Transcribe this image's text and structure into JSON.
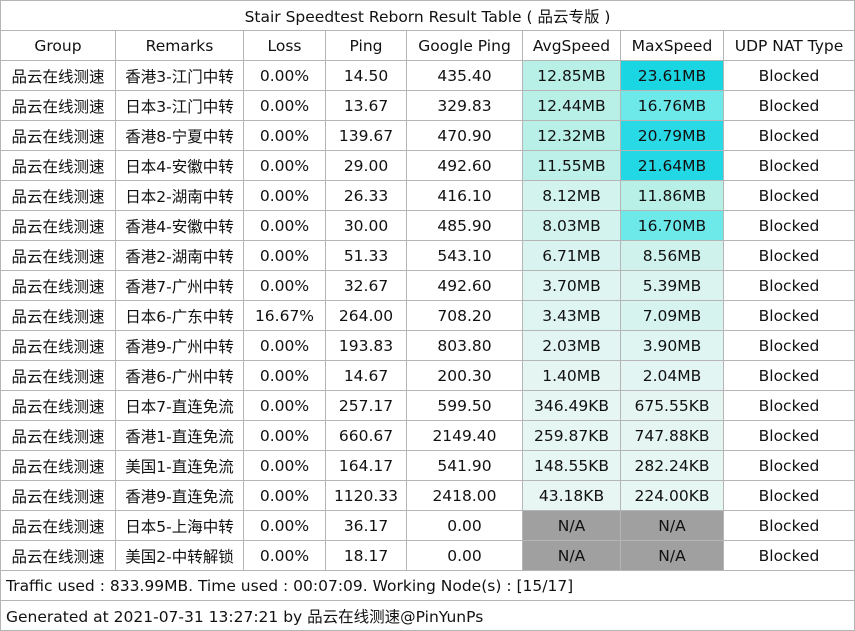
{
  "title": "Stair Speedtest Reborn Result Table ( 品云专版 )",
  "columns": [
    "Group",
    "Remarks",
    "Loss",
    "Ping",
    "Google Ping",
    "AvgSpeed",
    "MaxSpeed",
    "UDP NAT Type"
  ],
  "rows": [
    {
      "group": "品云在线测速",
      "remarks": "香港3-江门中转",
      "loss": "0.00%",
      "ping": "14.50",
      "google_ping": "435.40",
      "avg": "12.85MB",
      "max": "23.61MB",
      "nat": "Blocked",
      "avg_color": "#b8f0e8",
      "max_color": "#1ad6e3"
    },
    {
      "group": "品云在线测速",
      "remarks": "日本3-江门中转",
      "loss": "0.00%",
      "ping": "13.67",
      "google_ping": "329.83",
      "avg": "12.44MB",
      "max": "16.76MB",
      "nat": "Blocked",
      "avg_color": "#b8f0e8",
      "max_color": "#6ee9ea"
    },
    {
      "group": "品云在线测速",
      "remarks": "香港8-宁夏中转",
      "loss": "0.00%",
      "ping": "139.67",
      "google_ping": "470.90",
      "avg": "12.32MB",
      "max": "20.79MB",
      "nat": "Blocked",
      "avg_color": "#b8f0e8",
      "max_color": "#29d9e6"
    },
    {
      "group": "品云在线测速",
      "remarks": "日本4-安徽中转",
      "loss": "0.00%",
      "ping": "29.00",
      "google_ping": "492.60",
      "avg": "11.55MB",
      "max": "21.64MB",
      "nat": "Blocked",
      "avg_color": "#bdf0e9",
      "max_color": "#22d8e5"
    },
    {
      "group": "品云在线测速",
      "remarks": "日本2-湖南中转",
      "loss": "0.00%",
      "ping": "26.33",
      "google_ping": "416.10",
      "avg": "8.12MB",
      "max": "11.86MB",
      "nat": "Blocked",
      "avg_color": "#d3f3ee",
      "max_color": "#b8f0e8"
    },
    {
      "group": "品云在线测速",
      "remarks": "香港4-安徽中转",
      "loss": "0.00%",
      "ping": "30.00",
      "google_ping": "485.90",
      "avg": "8.03MB",
      "max": "16.70MB",
      "nat": "Blocked",
      "avg_color": "#d3f3ee",
      "max_color": "#6ee9ea"
    },
    {
      "group": "品云在线测速",
      "remarks": "香港2-湖南中转",
      "loss": "0.00%",
      "ping": "51.33",
      "google_ping": "543.10",
      "avg": "6.71MB",
      "max": "8.56MB",
      "nat": "Blocked",
      "avg_color": "#d9f4f0",
      "max_color": "#d0f2ed"
    },
    {
      "group": "品云在线测速",
      "remarks": "香港7-广州中转",
      "loss": "0.00%",
      "ping": "32.67",
      "google_ping": "492.60",
      "avg": "3.70MB",
      "max": "5.39MB",
      "nat": "Blocked",
      "avg_color": "#dff5f1",
      "max_color": "#dcf4f0"
    },
    {
      "group": "品云在线测速",
      "remarks": "日本6-广东中转",
      "loss": "16.67%",
      "ping": "264.00",
      "google_ping": "708.20",
      "avg": "3.43MB",
      "max": "7.09MB",
      "nat": "Blocked",
      "avg_color": "#dff5f1",
      "max_color": "#d6f3ef"
    },
    {
      "group": "品云在线测速",
      "remarks": "香港9-广州中转",
      "loss": "0.00%",
      "ping": "193.83",
      "google_ping": "803.80",
      "avg": "2.03MB",
      "max": "3.90MB",
      "nat": "Blocked",
      "avg_color": "#e2f5f2",
      "max_color": "#dff5f1"
    },
    {
      "group": "品云在线测速",
      "remarks": "香港6-广州中转",
      "loss": "0.00%",
      "ping": "14.67",
      "google_ping": "200.30",
      "avg": "1.40MB",
      "max": "2.04MB",
      "nat": "Blocked",
      "avg_color": "#e4f5f2",
      "max_color": "#e2f5f2"
    },
    {
      "group": "品云在线测速",
      "remarks": "日本7-直连免流",
      "loss": "0.00%",
      "ping": "257.17",
      "google_ping": "599.50",
      "avg": "346.49KB",
      "max": "675.55KB",
      "nat": "Blocked",
      "avg_color": "#e6f6f3",
      "max_color": "#e4f5f2"
    },
    {
      "group": "品云在线测速",
      "remarks": "香港1-直连免流",
      "loss": "0.00%",
      "ping": "660.67",
      "google_ping": "2149.40",
      "avg": "259.87KB",
      "max": "747.88KB",
      "nat": "Blocked",
      "avg_color": "#e6f6f3",
      "max_color": "#e4f5f2"
    },
    {
      "group": "品云在线测速",
      "remarks": "美国1-直连免流",
      "loss": "0.00%",
      "ping": "164.17",
      "google_ping": "541.90",
      "avg": "148.55KB",
      "max": "282.24KB",
      "nat": "Blocked",
      "avg_color": "#e6f6f3",
      "max_color": "#e6f6f3"
    },
    {
      "group": "品云在线测速",
      "remarks": "香港9-直连免流",
      "loss": "0.00%",
      "ping": "1120.33",
      "google_ping": "2418.00",
      "avg": "43.18KB",
      "max": "224.00KB",
      "nat": "Blocked",
      "avg_color": "#e7f6f3",
      "max_color": "#e6f6f3"
    },
    {
      "group": "品云在线测速",
      "remarks": "日本5-上海中转",
      "loss": "0.00%",
      "ping": "36.17",
      "google_ping": "0.00",
      "avg": "N/A",
      "max": "N/A",
      "nat": "Blocked",
      "avg_color": "#a0a0a0",
      "max_color": "#a0a0a0"
    },
    {
      "group": "品云在线测速",
      "remarks": "美国2-中转解锁",
      "loss": "0.00%",
      "ping": "18.17",
      "google_ping": "0.00",
      "avg": "N/A",
      "max": "N/A",
      "nat": "Blocked",
      "avg_color": "#a0a0a0",
      "max_color": "#a0a0a0"
    }
  ],
  "footer": {
    "traffic": "Traffic used : 833.99MB. Time used : 00:07:09. Working Node(s) : [15/17]",
    "generated": "Generated at 2021-07-31 13:27:21 by 品云在线测速@PinYunPs"
  }
}
